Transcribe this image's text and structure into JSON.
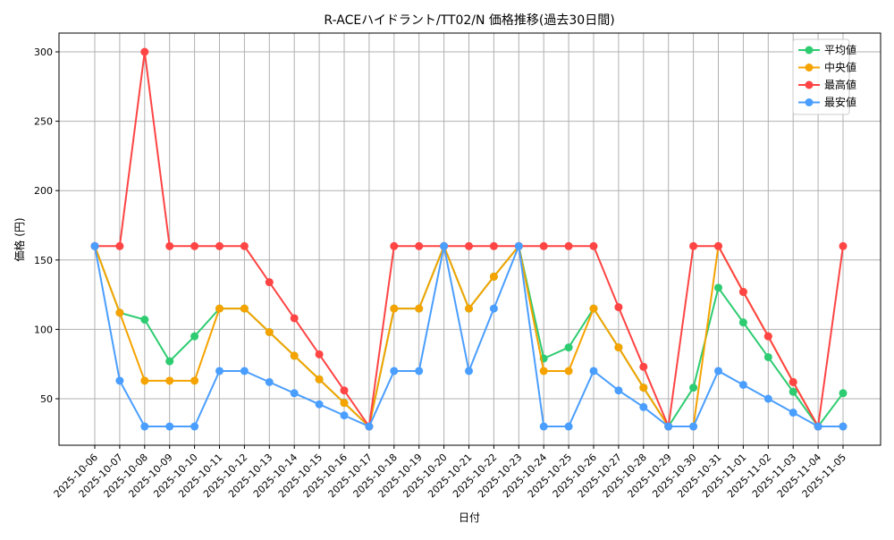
{
  "chart_data": {
    "type": "line",
    "title": "R-ACEハイドラント/TT02/N 価格推移(過去30日間)",
    "xlabel": "日付",
    "ylabel": "価格 (円)",
    "ylim": [
      15,
      313
    ],
    "yticks": [
      50,
      100,
      150,
      200,
      250,
      300
    ],
    "grid": true,
    "legend_position": "top-right",
    "x": [
      "2025-10-06",
      "2025-10-07",
      "2025-10-08",
      "2025-10-09",
      "2025-10-10",
      "2025-10-11",
      "2025-10-12",
      "2025-10-13",
      "2025-10-14",
      "2025-10-15",
      "2025-10-16",
      "2025-10-17",
      "2025-10-18",
      "2025-10-19",
      "2025-10-20",
      "2025-10-21",
      "2025-10-22",
      "2025-10-23",
      "2025-10-24",
      "2025-10-25",
      "2025-10-26",
      "2025-10-27",
      "2025-10-28",
      "2025-10-29",
      "2025-10-30",
      "2025-10-31",
      "2025-11-01",
      "2025-11-02",
      "2025-11-03",
      "2025-11-04",
      "2025-11-05"
    ],
    "series": [
      {
        "name": "平均値",
        "color": "#2ecc71",
        "values": [
          160,
          112,
          107,
          77,
          95,
          115,
          115,
          98,
          81,
          64,
          47,
          30,
          115,
          115,
          160,
          115,
          138,
          160,
          79,
          87,
          115,
          87,
          58,
          30,
          58,
          130,
          105,
          80,
          55,
          30,
          54
        ]
      },
      {
        "name": "中央値",
        "color": "#f5a300",
        "values": [
          160,
          112,
          63,
          63,
          63,
          115,
          115,
          98,
          81,
          64,
          47,
          30,
          115,
          115,
          160,
          115,
          138,
          160,
          70,
          70,
          115,
          87,
          58,
          30,
          30,
          160,
          127,
          95,
          62,
          30,
          30
        ]
      },
      {
        "name": "最高値",
        "color": "#ff4444",
        "values": [
          160,
          160,
          300,
          160,
          160,
          160,
          160,
          134,
          108,
          82,
          56,
          30,
          160,
          160,
          160,
          160,
          160,
          160,
          160,
          160,
          160,
          116,
          73,
          30,
          160,
          160,
          127,
          95,
          62,
          30,
          160
        ]
      },
      {
        "name": "最安値",
        "color": "#4a9eff",
        "values": [
          160,
          63,
          30,
          30,
          30,
          70,
          70,
          62,
          54,
          46,
          38,
          30,
          70,
          70,
          160,
          70,
          115,
          160,
          30,
          30,
          70,
          56,
          44,
          30,
          30,
          70,
          60,
          50,
          40,
          30,
          30
        ]
      }
    ]
  }
}
